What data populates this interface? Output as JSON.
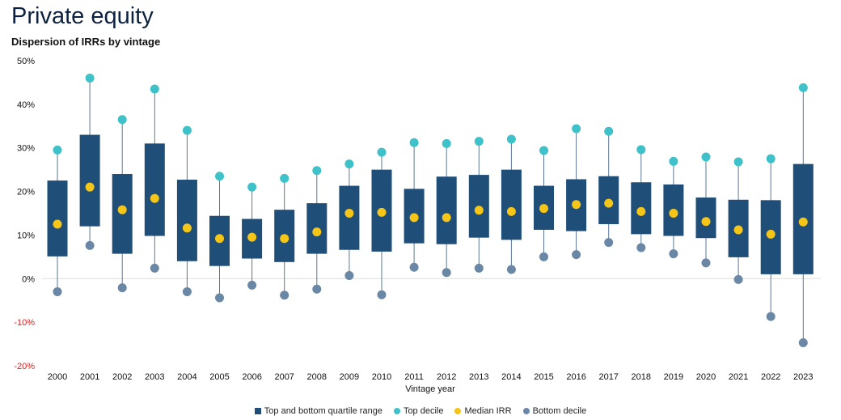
{
  "title": "Private equity",
  "subtitle": "Dispersion of IRRs by vintage",
  "colors": {
    "box": "#1f4e79",
    "top_decile": "#3ec1c9",
    "median": "#f5c518",
    "bottom_decile": "#6a87a6",
    "negative_tick": "#e02020",
    "whisker": "#5a7796",
    "zero_line": "#dddddd"
  },
  "legend": [
    {
      "key": "box",
      "label": "Top and bottom quartile range",
      "shape": "square"
    },
    {
      "key": "top_decile",
      "label": "Top decile",
      "shape": "dot"
    },
    {
      "key": "median",
      "label": "Median IRR",
      "shape": "dot"
    },
    {
      "key": "bottom_decile",
      "label": "Bottom decile",
      "shape": "dot"
    }
  ],
  "chart_data": {
    "type": "box",
    "xlabel": "Vintage year",
    "ylabel": "",
    "ylim": [
      -20,
      50
    ],
    "yticks": [
      -20,
      -10,
      0,
      10,
      20,
      30,
      40,
      50
    ],
    "ytick_labels": [
      "-20%",
      "-10%",
      "0%",
      "10%",
      "20%",
      "30%",
      "40%",
      "50%"
    ],
    "grid": false,
    "legend_position": "bottom",
    "categories": [
      "2000",
      "2001",
      "2002",
      "2003",
      "2004",
      "2005",
      "2006",
      "2007",
      "2008",
      "2009",
      "2010",
      "2011",
      "2012",
      "2013",
      "2014",
      "2015",
      "2016",
      "2017",
      "2018",
      "2019",
      "2020",
      "2021",
      "2022",
      "2023"
    ],
    "series": [
      {
        "name": "Top decile",
        "values": [
          29.5,
          46.0,
          36.5,
          43.5,
          34.0,
          23.5,
          21.0,
          23.0,
          24.8,
          26.3,
          29.0,
          31.2,
          31.0,
          31.5,
          32.0,
          29.4,
          34.4,
          33.8,
          29.6,
          26.9,
          27.9,
          26.8,
          27.5,
          43.8
        ]
      },
      {
        "name": "Top quartile",
        "values": [
          22.5,
          33.0,
          24.0,
          31.0,
          22.7,
          14.4,
          13.7,
          15.8,
          17.3,
          21.3,
          25.0,
          20.6,
          23.4,
          23.8,
          25.0,
          21.3,
          22.8,
          23.5,
          22.1,
          21.6,
          18.6,
          18.1,
          18.0,
          26.3
        ]
      },
      {
        "name": "Median IRR",
        "values": [
          12.5,
          21.0,
          15.8,
          18.4,
          11.6,
          9.2,
          9.5,
          9.2,
          10.7,
          15.0,
          15.2,
          14.0,
          14.0,
          15.7,
          15.4,
          16.1,
          17.0,
          17.3,
          15.4,
          15.0,
          13.1,
          11.2,
          10.2,
          13.0
        ]
      },
      {
        "name": "Bottom quartile",
        "values": [
          5.1,
          12.0,
          5.7,
          9.8,
          4.0,
          2.9,
          4.6,
          3.8,
          5.7,
          6.6,
          6.2,
          8.1,
          7.9,
          9.4,
          8.9,
          11.2,
          10.9,
          12.5,
          10.2,
          9.8,
          9.3,
          4.9,
          1.0,
          1.0
        ]
      },
      {
        "name": "Bottom decile",
        "values": [
          -3.0,
          7.6,
          -2.1,
          2.4,
          -3.0,
          -4.4,
          -1.5,
          -3.8,
          -2.4,
          0.7,
          -3.7,
          2.6,
          1.4,
          2.4,
          2.1,
          5.0,
          5.5,
          8.3,
          7.1,
          5.7,
          3.6,
          -0.2,
          -8.7,
          -14.7
        ]
      }
    ]
  }
}
